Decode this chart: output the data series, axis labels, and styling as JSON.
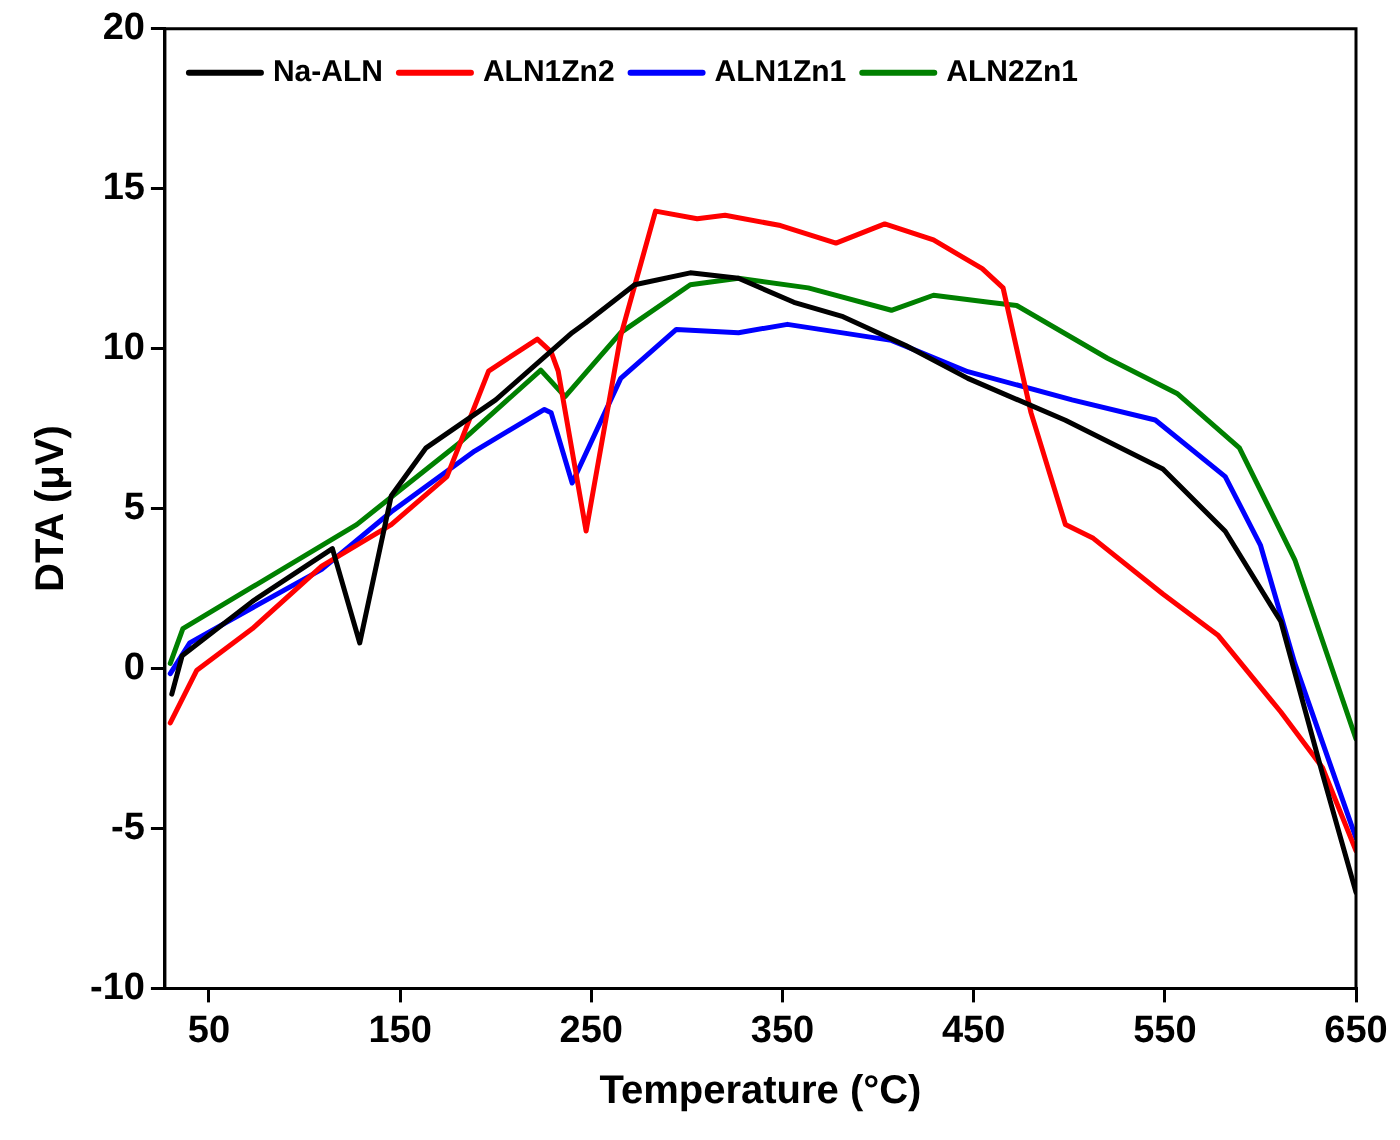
{
  "chart_data": {
    "type": "line",
    "xlabel": "Temperature (°C)",
    "ylabel": "DTA (μV)",
    "xlim": [
      27,
      650
    ],
    "xticks": [
      50,
      150,
      250,
      350,
      450,
      550,
      650
    ],
    "ylim": [
      -10,
      20
    ],
    "yticks": [
      -10,
      -5,
      0,
      5,
      10,
      15,
      20
    ],
    "grid": false,
    "legend": "top left",
    "marker": "none",
    "line_style": "solid",
    "series": [
      {
        "name": "Na-ALN",
        "color": "#000000",
        "x": [
          30.6,
          36,
          72.8,
          114.6,
          128.9,
          145.4,
          163.6,
          200,
          240,
          247,
          272.7,
          301.8,
          327,
          356,
          381.7,
          414.5,
          447,
          498,
          549,
          581.6,
          610.7,
          632.5,
          650
        ],
        "values": [
          -0.8,
          0.4,
          2.1,
          3.75,
          0.8,
          5.4,
          6.9,
          8.4,
          10.5,
          10.8,
          12.0,
          12.37,
          12.2,
          11.45,
          11.0,
          10.1,
          9.07,
          7.76,
          6.24,
          4.29,
          1.47,
          -3.3,
          -7.0
        ]
      },
      {
        "name": "ALN1Zn2",
        "color": "#ff0000",
        "x": [
          29.8,
          43.7,
          72.8,
          109,
          145.4,
          174.5,
          196.3,
          221.8,
          229,
          232.7,
          247.3,
          265.4,
          283.6,
          305.4,
          320,
          349,
          378,
          403.5,
          429,
          454.5,
          465.4,
          480,
          498,
          512.6,
          549,
          578,
          610.7,
          632.5,
          650
        ],
        "values": [
          -1.7,
          -0.05,
          1.25,
          3.2,
          4.5,
          6.0,
          9.3,
          10.3,
          9.9,
          9.3,
          4.3,
          10.4,
          14.3,
          14.06,
          14.17,
          13.85,
          13.3,
          13.9,
          13.4,
          12.5,
          11.9,
          8.0,
          4.5,
          4.07,
          2.33,
          1.03,
          -1.36,
          -3.1,
          -5.7
        ]
      },
      {
        "name": "ALN1Zn1",
        "color": "#0000ff",
        "x": [
          29.8,
          40,
          72.8,
          109,
          145.4,
          189,
          225.5,
          229,
          240,
          265.4,
          294.5,
          327,
          352.6,
          407,
          447,
          501.5,
          545,
          581.6,
          600,
          618,
          650
        ],
        "values": [
          -0.16,
          0.8,
          1.9,
          3.1,
          4.9,
          6.8,
          8.1,
          8.0,
          5.8,
          9.07,
          10.6,
          10.5,
          10.76,
          10.26,
          9.28,
          8.4,
          7.77,
          6.0,
          3.86,
          0.16,
          -5.3
        ]
      },
      {
        "name": "ALN2Zn1",
        "color": "#008000",
        "x": [
          29.8,
          36.4,
          72.8,
          127.3,
          182,
          223.6,
          236.3,
          265.4,
          301.8,
          327,
          363.5,
          407,
          429,
          458,
          472.5,
          520,
          556.4,
          589,
          618,
          650
        ],
        "values": [
          0.16,
          1.25,
          2.55,
          4.5,
          7.1,
          9.33,
          8.5,
          10.5,
          12.0,
          12.2,
          11.9,
          11.2,
          11.67,
          11.45,
          11.35,
          9.7,
          8.6,
          6.9,
          3.4,
          -2.2
        ]
      }
    ]
  }
}
